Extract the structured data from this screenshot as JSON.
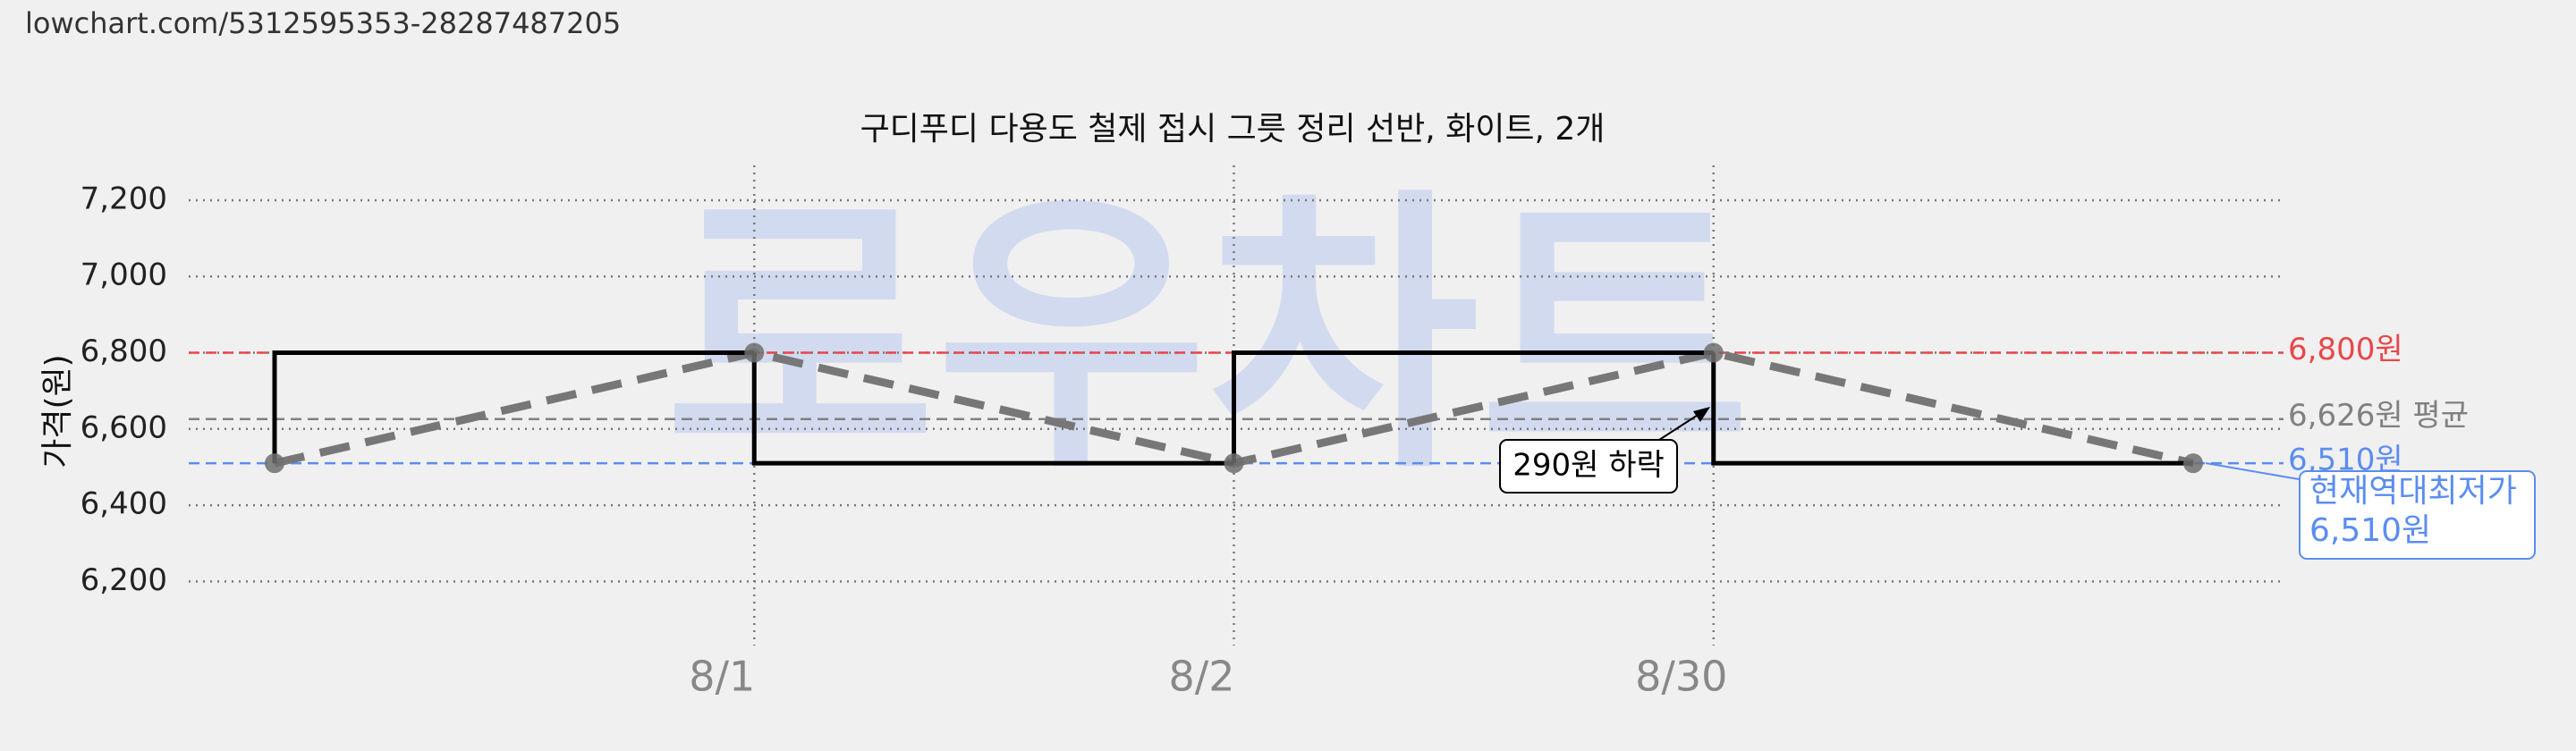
{
  "source_url": "lowchart.com/5312595353-28287487205",
  "watermark": "로우차트",
  "chart_data": {
    "type": "step-line",
    "title": "구디푸디 다용도 철제 접시 그릇 정리 선반, 화이트, 2개",
    "y_label": "가격(원)",
    "categories": [
      null,
      "8/1",
      "8/2",
      "8/30",
      null
    ],
    "values": [
      6510,
      6800,
      6510,
      6800,
      6510
    ],
    "step_color": "#000000",
    "trend_color": "#777777",
    "ylim": [
      6100,
      7350
    ],
    "yticks": [
      {
        "value": 6200,
        "label": "6,200"
      },
      {
        "value": 6400,
        "label": "6,400"
      },
      {
        "value": 6600,
        "label": "6,600"
      },
      {
        "value": 6800,
        "label": "6,800"
      },
      {
        "value": 7000,
        "label": "7,000"
      },
      {
        "value": 7200,
        "label": "7,200"
      }
    ],
    "grid": true,
    "reference_lines": [
      {
        "value": 6800,
        "label": "6,800원",
        "color": "#e8474a"
      },
      {
        "value": 6626,
        "label": "6,626원 평균",
        "color": "#808080"
      },
      {
        "value": 6510,
        "label": "6,510원",
        "color": "#5b8def"
      }
    ],
    "annotation": "290원 하락",
    "callout": [
      "현재역대최저가",
      "6,510원"
    ]
  }
}
